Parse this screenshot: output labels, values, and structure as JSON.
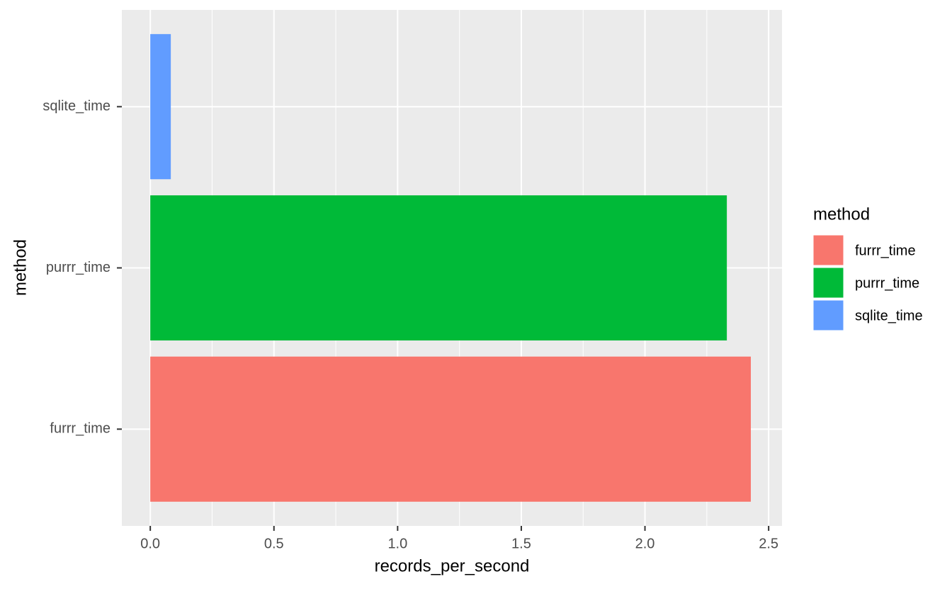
{
  "chart_data": {
    "type": "bar",
    "orientation": "horizontal",
    "x_label": "records_per_second",
    "y_label": "method",
    "legend_title": "method",
    "categories": [
      "furrr_time",
      "purrr_time",
      "sqlite_time"
    ],
    "values": [
      2.428,
      2.331,
      0.083
    ],
    "colors": [
      "#f8766d",
      "#00ba38",
      "#619cff"
    ],
    "xlim": [
      -0.115,
      2.554
    ],
    "xticks": [
      {
        "value": 0,
        "label": "0.0"
      },
      0.5,
      {
        "value": 1,
        "label": "1.0"
      },
      1.5,
      {
        "value": 2,
        "label": "2.0"
      },
      2.5
    ],
    "grid": true
  }
}
